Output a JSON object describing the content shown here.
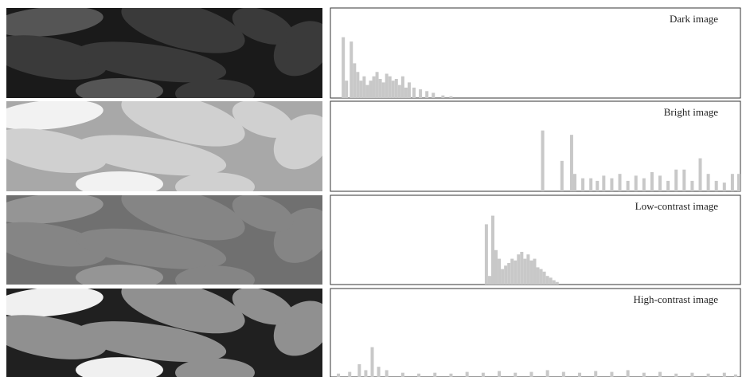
{
  "chart_data": [
    {
      "type": "bar",
      "title": "Dark image",
      "color": "#c8c8c8",
      "xlim": [
        0,
        255
      ],
      "ylim": [
        0,
        100
      ],
      "x": [
        8,
        10,
        13,
        15,
        17,
        19,
        21,
        23,
        25,
        27,
        29,
        31,
        33,
        35,
        37,
        39,
        41,
        43,
        45,
        47,
        49,
        52,
        56,
        60,
        64,
        70,
        75
      ],
      "values": [
        70,
        20,
        65,
        40,
        30,
        20,
        25,
        15,
        20,
        25,
        30,
        22,
        18,
        28,
        25,
        20,
        22,
        15,
        25,
        12,
        18,
        12,
        10,
        8,
        6,
        3,
        2
      ]
    },
    {
      "type": "bar",
      "title": "Bright image",
      "color": "#c8c8c8",
      "xlim": [
        0,
        255
      ],
      "ylim": [
        0,
        100
      ],
      "x": [
        132,
        144,
        150,
        152,
        157,
        162,
        166,
        170,
        175,
        180,
        185,
        190,
        195,
        200,
        205,
        210,
        215,
        220,
        225,
        230,
        235,
        240,
        245,
        250,
        254
      ],
      "values": [
        70,
        35,
        65,
        20,
        15,
        15,
        12,
        18,
        15,
        20,
        12,
        18,
        15,
        22,
        18,
        12,
        25,
        25,
        12,
        38,
        20,
        12,
        10,
        20,
        20
      ]
    },
    {
      "type": "bar",
      "title": "Low-contrast image",
      "color": "#c8c8c8",
      "xlim": [
        0,
        255
      ],
      "ylim": [
        0,
        100
      ],
      "x": [
        97,
        99,
        101,
        103,
        105,
        107,
        109,
        111,
        113,
        115,
        117,
        119,
        121,
        123,
        125,
        127,
        129,
        131,
        133,
        135,
        137,
        139,
        141
      ],
      "values": [
        70,
        10,
        80,
        40,
        30,
        18,
        22,
        25,
        30,
        28,
        35,
        38,
        30,
        35,
        28,
        30,
        20,
        18,
        15,
        10,
        8,
        5,
        3
      ]
    },
    {
      "type": "bar",
      "title": "High-contrast image",
      "color": "#c8c8c8",
      "xlim": [
        0,
        255
      ],
      "ylim": [
        0,
        100
      ],
      "x": [
        5,
        12,
        18,
        22,
        26,
        30,
        35,
        45,
        55,
        65,
        75,
        85,
        95,
        105,
        115,
        125,
        135,
        145,
        155,
        165,
        175,
        185,
        195,
        205,
        215,
        225,
        235,
        245,
        252
      ],
      "values": [
        4,
        6,
        15,
        8,
        35,
        12,
        8,
        5,
        4,
        5,
        4,
        6,
        5,
        7,
        5,
        6,
        8,
        6,
        5,
        7,
        6,
        8,
        5,
        6,
        4,
        5,
        4,
        5,
        3
      ]
    }
  ]
}
